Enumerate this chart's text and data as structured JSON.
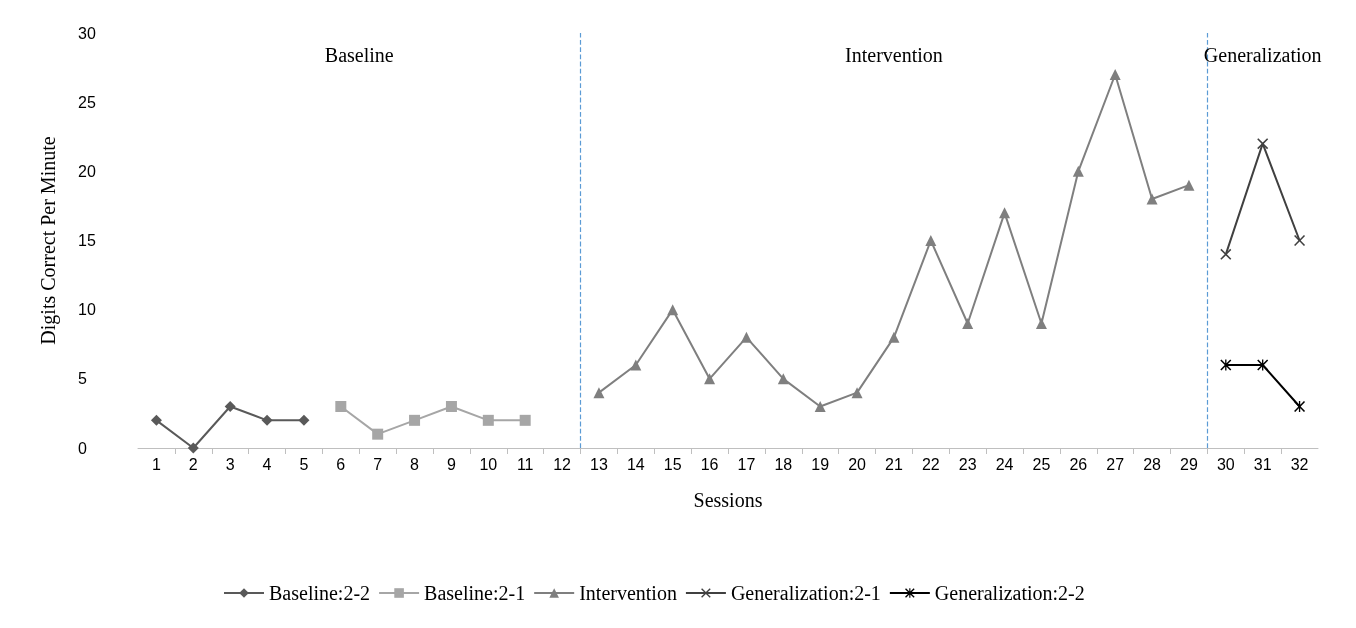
{
  "chart_data": {
    "type": "line",
    "xlabel": "Sessions",
    "ylabel": "Digits Correct Per Minute",
    "xlim": [
      0.5,
      32.5
    ],
    "xticks": [
      1,
      2,
      3,
      4,
      5,
      6,
      7,
      8,
      9,
      10,
      11,
      12,
      13,
      14,
      15,
      16,
      17,
      18,
      19,
      20,
      21,
      22,
      23,
      24,
      25,
      26,
      27,
      28,
      29,
      30,
      31,
      32
    ],
    "ylim": [
      0,
      30
    ],
    "yticks": [
      0,
      5,
      10,
      15,
      20,
      25,
      30
    ],
    "grid": false,
    "legend": "bottom",
    "series": [
      {
        "name": "Baseline:2-2",
        "color": "#595959",
        "marker": "diamond",
        "x": [
          1,
          2,
          3,
          4,
          5
        ],
        "values": [
          2,
          0,
          3,
          2,
          2
        ]
      },
      {
        "name": "Baseline:2-1",
        "color": "#a6a6a6",
        "marker": "square",
        "x": [
          6,
          7,
          8,
          9,
          10,
          11
        ],
        "values": [
          3,
          1,
          2,
          3,
          2,
          2
        ]
      },
      {
        "name": "Intervention",
        "color": "#7f7f7f",
        "marker": "triangle",
        "x": [
          13,
          14,
          15,
          16,
          17,
          18,
          19,
          20,
          21,
          22,
          23,
          24,
          25,
          26,
          27,
          28,
          29
        ],
        "values": [
          4,
          6,
          10,
          5,
          8,
          5,
          3,
          4,
          8,
          15,
          9,
          17,
          9,
          20,
          27,
          18,
          19
        ]
      },
      {
        "name": "Generalization:2-1",
        "color": "#404040",
        "marker": "cross",
        "x": [
          30,
          31,
          32
        ],
        "values": [
          14,
          22,
          15
        ]
      },
      {
        "name": "Generalization:2-2",
        "color": "#000000",
        "marker": "star",
        "x": [
          30,
          31,
          32
        ],
        "values": [
          6,
          6,
          3
        ]
      }
    ],
    "ref_lines": [
      {
        "axis": "x",
        "value": 12.5,
        "color": "#5b9bd5",
        "line_style": "dashed"
      },
      {
        "axis": "x",
        "value": 29.5,
        "color": "#5b9bd5",
        "line_style": "dashed"
      }
    ],
    "annotations": [
      "Baseline",
      "Intervention",
      "Generalization"
    ]
  }
}
